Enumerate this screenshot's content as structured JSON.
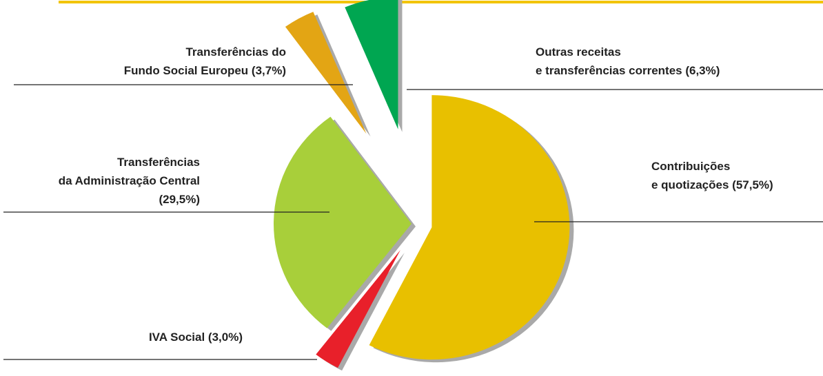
{
  "chart_data": {
    "type": "pie",
    "categories": [
      "Contribuições\ne quotizações",
      "IVA Social",
      "Transferências\nda Administração Central",
      "Transferências do\nFundo Social Europeu",
      "Outras receitas\ne transferências correntes"
    ],
    "values": [
      57.5,
      3.0,
      29.5,
      3.7,
      6.3
    ],
    "value_labels": [
      "(57,5%)",
      "(3,0%)",
      "(29,5%)",
      "(3,7%)",
      "(6,3%)"
    ],
    "colors": [
      "#e8c000",
      "#e8202a",
      "#a8cf3a",
      "#e3a514",
      "#00a651"
    ]
  }
}
